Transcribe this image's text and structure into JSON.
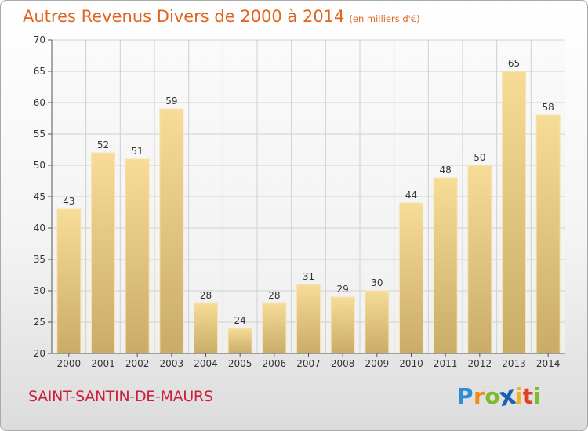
{
  "chart_data": {
    "type": "bar",
    "title": "Autres Revenus Divers de 2000 à 2014",
    "unit_note": "(en milliers d'€)",
    "xlabel": "",
    "ylabel": "",
    "categories": [
      "2000",
      "2001",
      "2002",
      "2003",
      "2004",
      "2005",
      "2006",
      "2007",
      "2008",
      "2009",
      "2010",
      "2011",
      "2012",
      "2013",
      "2014"
    ],
    "values": [
      43,
      52,
      51,
      59,
      28,
      24,
      28,
      31,
      29,
      30,
      44,
      48,
      50,
      65,
      58
    ],
    "ylim": [
      20,
      70
    ],
    "yticks": [
      20,
      25,
      30,
      35,
      40,
      45,
      50,
      55,
      60,
      65,
      70
    ],
    "grid": true,
    "bar_color": "#e8c97c"
  },
  "footer": {
    "commune": "SAINT-SANTIN-DE-MAURS",
    "logo": {
      "letters": [
        "P",
        "r",
        "o",
        "x",
        "i",
        "t",
        "i"
      ],
      "colors": [
        "#2a8fd4",
        "#f08a1c",
        "#7dbb2a",
        "#1a5fb4",
        "#f2b11c",
        "#e0402a",
        "#7dbb2a"
      ]
    }
  },
  "colors": {
    "title": "#e0651f",
    "commune": "#cc1f3c",
    "axis": "#555555",
    "grid": "#d0d0d0"
  }
}
